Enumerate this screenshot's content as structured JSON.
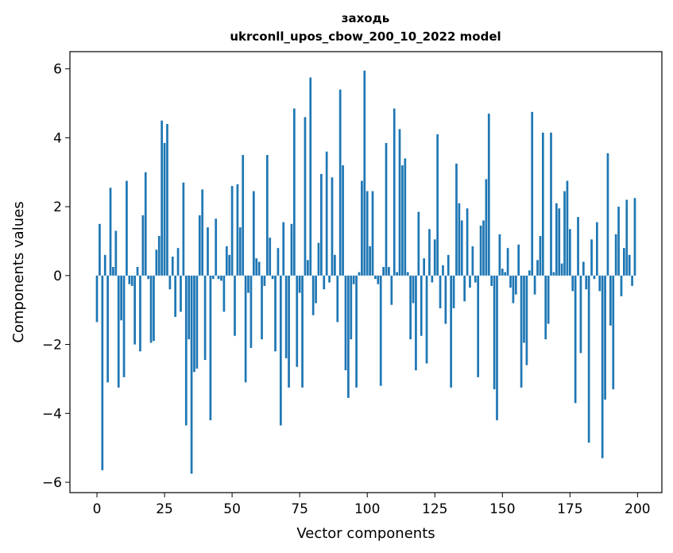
{
  "chart_data": {
    "type": "bar",
    "title": "заходь",
    "subtitle": "ukrconll_upos_cbow_200_10_2022 model",
    "xlabel": "Vector components",
    "ylabel": "Components values",
    "xlim": [
      -10,
      209
    ],
    "ylim": [
      -6.3,
      6.5
    ],
    "xticks": [
      0,
      25,
      50,
      75,
      100,
      125,
      150,
      175,
      200
    ],
    "yticks": [
      -6,
      -4,
      -2,
      0,
      2,
      4,
      6
    ],
    "ytick_labels": [
      "−6",
      "−4",
      "−2",
      "0",
      "2",
      "4",
      "6"
    ],
    "grid": false,
    "bar_color": "#1f77b4",
    "values": [
      -1.35,
      1.5,
      -5.65,
      0.6,
      -3.1,
      2.55,
      0.25,
      1.3,
      -3.25,
      -1.3,
      -2.95,
      2.75,
      -0.25,
      -0.3,
      -2.0,
      0.25,
      -2.2,
      1.75,
      3.0,
      -0.1,
      -1.95,
      -1.9,
      0.75,
      1.15,
      4.5,
      3.85,
      4.4,
      -0.4,
      0.55,
      -1.2,
      0.8,
      -1.05,
      2.7,
      -4.35,
      -1.85,
      -5.75,
      -2.8,
      -2.7,
      1.75,
      2.5,
      -2.45,
      1.4,
      -4.2,
      -0.1,
      1.65,
      -0.1,
      -0.15,
      -1.05,
      0.85,
      0.6,
      2.6,
      -1.75,
      2.65,
      1.4,
      3.5,
      -3.1,
      -0.5,
      -2.1,
      2.45,
      0.5,
      0.4,
      -1.85,
      -0.3,
      3.5,
      1.1,
      -0.1,
      -2.2,
      0.8,
      -4.35,
      1.55,
      -2.4,
      -3.25,
      1.5,
      4.85,
      -2.65,
      -0.5,
      -3.25,
      4.6,
      0.45,
      5.75,
      -1.15,
      -0.8,
      0.95,
      2.95,
      -0.4,
      3.6,
      -0.2,
      2.85,
      0.6,
      -1.35,
      5.4,
      3.2,
      -2.75,
      -3.55,
      -1.85,
      -0.25,
      -3.25,
      0.1,
      2.75,
      5.95,
      2.45,
      0.85,
      2.45,
      -0.1,
      -0.25,
      -3.2,
      0.25,
      3.85,
      0.25,
      -0.85,
      4.85,
      0.1,
      4.25,
      3.2,
      3.4,
      0.1,
      -1.85,
      -0.8,
      -2.75,
      1.85,
      -1.75,
      0.5,
      -2.55,
      1.35,
      -0.2,
      1.05,
      4.1,
      -0.95,
      0.3,
      -1.4,
      0.6,
      -3.25,
      -0.95,
      3.25,
      2.1,
      1.6,
      -0.75,
      1.95,
      -0.35,
      0.85,
      -0.2,
      -2.95,
      1.45,
      1.6,
      2.8,
      4.7,
      -0.3,
      -3.3,
      -4.2,
      1.2,
      0.2,
      0.1,
      0.8,
      -0.35,
      -0.8,
      -0.55,
      0.9,
      -3.25,
      -1.95,
      -2.6,
      0.15,
      4.75,
      -0.55,
      0.45,
      1.15,
      4.15,
      -1.85,
      -1.4,
      4.15,
      0.1,
      2.1,
      1.95,
      0.35,
      2.45,
      2.75,
      1.35,
      -0.45,
      -3.7,
      1.7,
      -2.25,
      0.4,
      -0.4,
      -4.85,
      1.05,
      -0.1,
      1.55,
      -0.45,
      -5.3,
      -3.6,
      3.55,
      -1.45,
      -3.3,
      1.2,
      2.0,
      -0.6,
      0.8,
      2.2,
      0.6,
      -0.3,
      2.25
    ]
  }
}
